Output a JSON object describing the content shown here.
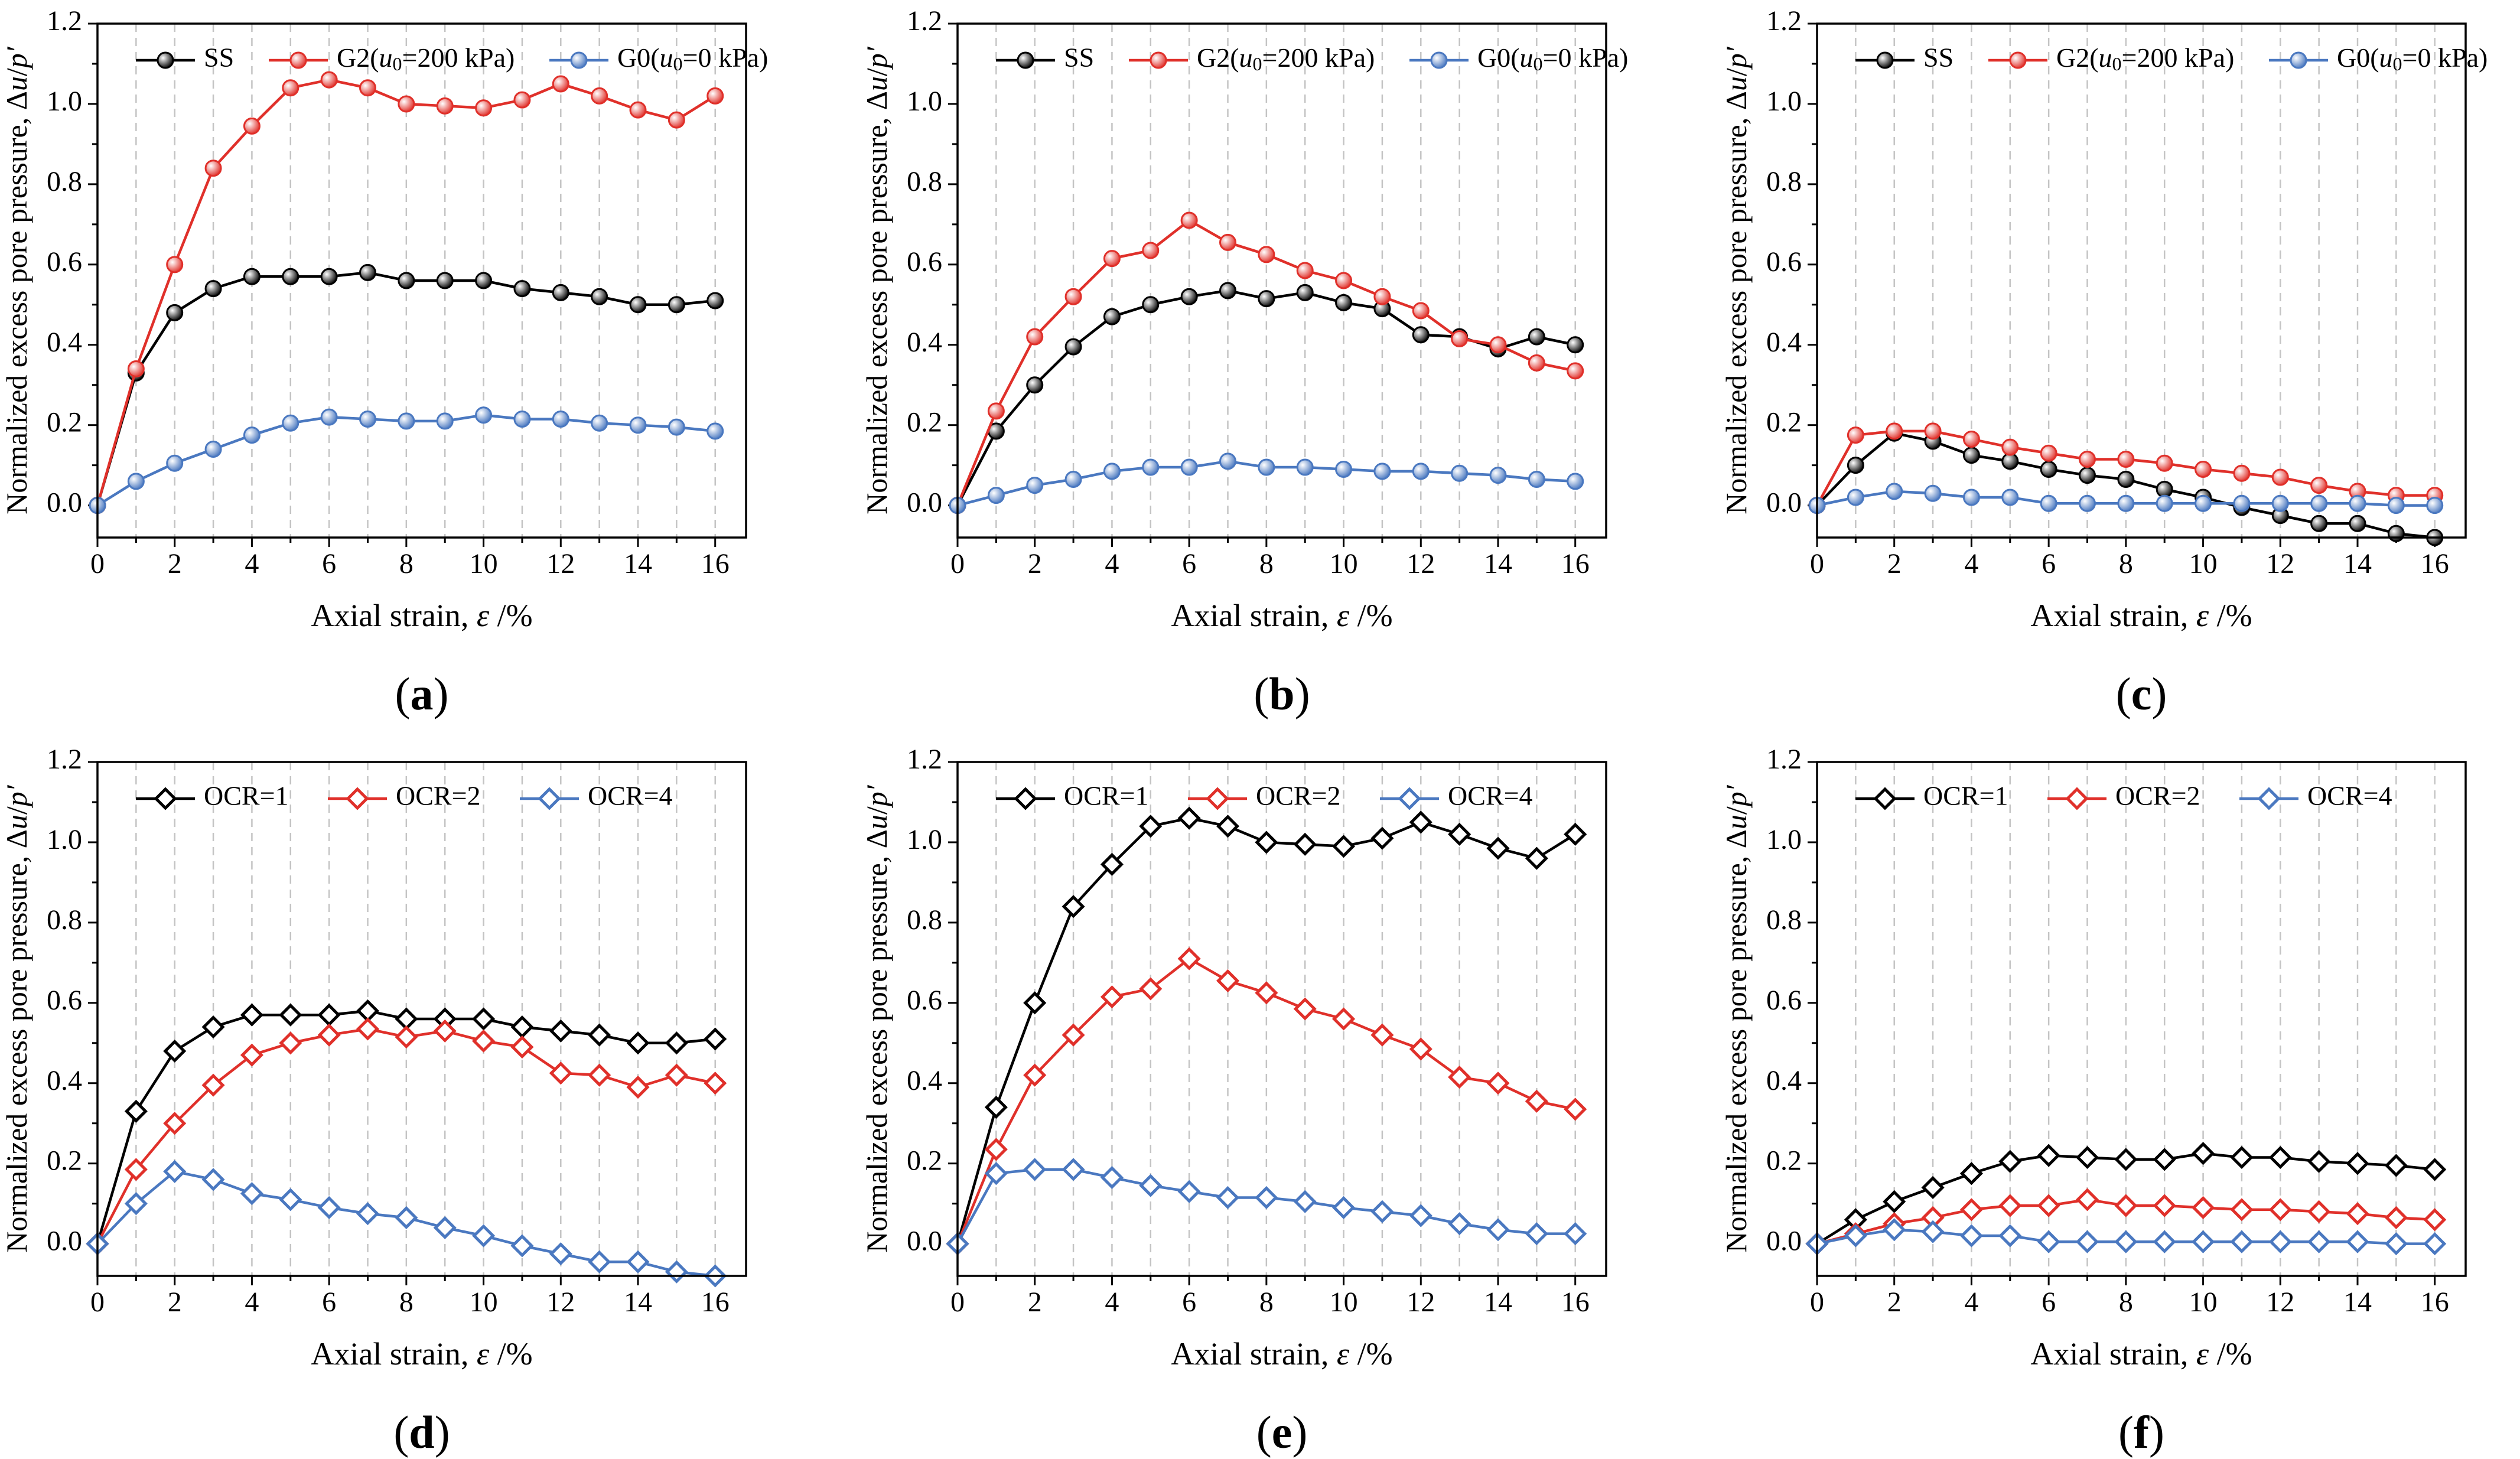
{
  "chart_data": [
    {
      "type": "line",
      "panel_label": "a",
      "xlabel": "Axial strain, ε /%",
      "ylabel": "Normalized excess pore pressure, Δu/p′",
      "xlim": [
        0,
        16.8
      ],
      "ylim": [
        -0.08,
        1.2
      ],
      "xticks": [
        0,
        2,
        4,
        6,
        8,
        10,
        12,
        14,
        16
      ],
      "yticks": [
        0.0,
        0.2,
        0.4,
        0.6,
        0.8,
        1.0,
        1.2
      ],
      "grid": "vertical dashed lines at every integer strain",
      "legend": "top",
      "marker": "circle",
      "x": [
        0,
        1,
        2,
        3,
        4,
        5,
        6,
        7,
        8,
        9,
        10,
        11,
        12,
        13,
        14,
        15,
        16
      ],
      "series": [
        {
          "name": "SS",
          "color": "#000000",
          "values": [
            0.0,
            0.33,
            0.48,
            0.54,
            0.57,
            0.57,
            0.57,
            0.58,
            0.56,
            0.56,
            0.56,
            0.54,
            0.53,
            0.52,
            0.5,
            0.5,
            0.51
          ]
        },
        {
          "name": "G2(u0=200 kPa)",
          "color": "#e0302a",
          "values": [
            0.0,
            0.34,
            0.6,
            0.84,
            0.945,
            1.04,
            1.06,
            1.04,
            1.0,
            0.995,
            0.99,
            1.01,
            1.05,
            1.02,
            0.985,
            0.96,
            1.02
          ]
        },
        {
          "name": "G0(u0=0 kPa)",
          "color": "#4a78c0",
          "values": [
            0.0,
            0.06,
            0.105,
            0.14,
            0.175,
            0.205,
            0.22,
            0.215,
            0.21,
            0.21,
            0.225,
            0.215,
            0.215,
            0.205,
            0.2,
            0.195,
            0.185
          ]
        }
      ]
    },
    {
      "type": "line",
      "panel_label": "b",
      "xlabel": "Axial strain, ε /%",
      "ylabel": "Normalized excess pore pressure, Δu/p′",
      "xlim": [
        0,
        16.8
      ],
      "ylim": [
        -0.08,
        1.2
      ],
      "xticks": [
        0,
        2,
        4,
        6,
        8,
        10,
        12,
        14,
        16
      ],
      "yticks": [
        0.0,
        0.2,
        0.4,
        0.6,
        0.8,
        1.0,
        1.2
      ],
      "grid": "vertical dashed lines at every integer strain",
      "legend": "top",
      "marker": "circle",
      "x": [
        0,
        1,
        2,
        3,
        4,
        5,
        6,
        7,
        8,
        9,
        10,
        11,
        12,
        13,
        14,
        15,
        16
      ],
      "series": [
        {
          "name": "SS",
          "color": "#000000",
          "values": [
            0.0,
            0.185,
            0.3,
            0.395,
            0.47,
            0.5,
            0.52,
            0.535,
            0.515,
            0.53,
            0.505,
            0.49,
            0.425,
            0.42,
            0.39,
            0.42,
            0.4
          ]
        },
        {
          "name": "G2(u0=200 kPa)",
          "color": "#e0302a",
          "values": [
            0.0,
            0.235,
            0.42,
            0.52,
            0.615,
            0.635,
            0.71,
            0.655,
            0.625,
            0.585,
            0.56,
            0.52,
            0.485,
            0.415,
            0.4,
            0.355,
            0.335
          ]
        },
        {
          "name": "G0(u0=0 kPa)",
          "color": "#4a78c0",
          "values": [
            0.0,
            0.025,
            0.05,
            0.065,
            0.085,
            0.095,
            0.095,
            0.11,
            0.095,
            0.095,
            0.09,
            0.085,
            0.085,
            0.08,
            0.075,
            0.065,
            0.06
          ]
        }
      ]
    },
    {
      "type": "line",
      "panel_label": "c",
      "xlabel": "Axial strain, ε /%",
      "ylabel": "Normalized excess pore pressure, Δu/p′",
      "xlim": [
        0,
        16.8
      ],
      "ylim": [
        -0.08,
        1.2
      ],
      "xticks": [
        0,
        2,
        4,
        6,
        8,
        10,
        12,
        14,
        16
      ],
      "yticks": [
        0.0,
        0.2,
        0.4,
        0.6,
        0.8,
        1.0,
        1.2
      ],
      "grid": "vertical dashed lines at every integer strain",
      "legend": "top",
      "marker": "circle",
      "x": [
        0,
        1,
        2,
        3,
        4,
        5,
        6,
        7,
        8,
        9,
        10,
        11,
        12,
        13,
        14,
        15,
        16
      ],
      "series": [
        {
          "name": "SS",
          "color": "#000000",
          "values": [
            0.0,
            0.1,
            0.18,
            0.16,
            0.125,
            0.11,
            0.09,
            0.075,
            0.065,
            0.04,
            0.02,
            -0.005,
            -0.025,
            -0.045,
            -0.045,
            -0.07,
            -0.08
          ]
        },
        {
          "name": "G2(u0=200 kPa)",
          "color": "#e0302a",
          "values": [
            0.0,
            0.175,
            0.185,
            0.185,
            0.165,
            0.145,
            0.13,
            0.115,
            0.115,
            0.105,
            0.09,
            0.08,
            0.07,
            0.05,
            0.035,
            0.025,
            0.025
          ]
        },
        {
          "name": "G0(u0=0 kPa)",
          "color": "#4a78c0",
          "values": [
            0.0,
            0.02,
            0.035,
            0.03,
            0.02,
            0.02,
            0.005,
            0.005,
            0.005,
            0.005,
            0.005,
            0.005,
            0.005,
            0.005,
            0.005,
            0.0,
            0.0
          ]
        }
      ]
    },
    {
      "type": "line",
      "panel_label": "d",
      "xlabel": "Axial strain, ε /%",
      "ylabel": "Normalized excess pore pressure, Δu/p′",
      "xlim": [
        0,
        16.8
      ],
      "ylim": [
        -0.08,
        1.2
      ],
      "xticks": [
        0,
        2,
        4,
        6,
        8,
        10,
        12,
        14,
        16
      ],
      "yticks": [
        0.0,
        0.2,
        0.4,
        0.6,
        0.8,
        1.0,
        1.2
      ],
      "grid": "vertical dashed lines at every integer strain",
      "legend": "top",
      "marker": "diamond",
      "x": [
        0,
        1,
        2,
        3,
        4,
        5,
        6,
        7,
        8,
        9,
        10,
        11,
        12,
        13,
        14,
        15,
        16
      ],
      "series": [
        {
          "name": "OCR=1",
          "color": "#000000",
          "values": [
            0.0,
            0.33,
            0.48,
            0.54,
            0.57,
            0.57,
            0.57,
            0.58,
            0.56,
            0.56,
            0.56,
            0.54,
            0.53,
            0.52,
            0.5,
            0.5,
            0.51
          ]
        },
        {
          "name": "OCR=2",
          "color": "#e0302a",
          "values": [
            0.0,
            0.185,
            0.3,
            0.395,
            0.47,
            0.5,
            0.52,
            0.535,
            0.515,
            0.53,
            0.505,
            0.49,
            0.425,
            0.42,
            0.39,
            0.42,
            0.4
          ]
        },
        {
          "name": "OCR=4",
          "color": "#4a78c0",
          "values": [
            0.0,
            0.1,
            0.18,
            0.16,
            0.125,
            0.11,
            0.09,
            0.075,
            0.065,
            0.04,
            0.02,
            -0.005,
            -0.025,
            -0.045,
            -0.045,
            -0.07,
            -0.08
          ]
        }
      ]
    },
    {
      "type": "line",
      "panel_label": "e",
      "xlabel": "Axial strain, ε /%",
      "ylabel": "Normalized excess pore pressure, Δu/p′",
      "xlim": [
        0,
        16.8
      ],
      "ylim": [
        -0.08,
        1.2
      ],
      "xticks": [
        0,
        2,
        4,
        6,
        8,
        10,
        12,
        14,
        16
      ],
      "yticks": [
        0.0,
        0.2,
        0.4,
        0.6,
        0.8,
        1.0,
        1.2
      ],
      "grid": "vertical dashed lines at every integer strain",
      "legend": "top",
      "marker": "diamond",
      "x": [
        0,
        1,
        2,
        3,
        4,
        5,
        6,
        7,
        8,
        9,
        10,
        11,
        12,
        13,
        14,
        15,
        16
      ],
      "series": [
        {
          "name": "OCR=1",
          "color": "#000000",
          "values": [
            0.0,
            0.34,
            0.6,
            0.84,
            0.945,
            1.04,
            1.06,
            1.04,
            1.0,
            0.995,
            0.99,
            1.01,
            1.05,
            1.02,
            0.985,
            0.96,
            1.02
          ]
        },
        {
          "name": "OCR=2",
          "color": "#e0302a",
          "values": [
            0.0,
            0.235,
            0.42,
            0.52,
            0.615,
            0.635,
            0.71,
            0.655,
            0.625,
            0.585,
            0.56,
            0.52,
            0.485,
            0.415,
            0.4,
            0.355,
            0.335
          ]
        },
        {
          "name": "OCR=4",
          "color": "#4a78c0",
          "values": [
            0.0,
            0.175,
            0.185,
            0.185,
            0.165,
            0.145,
            0.13,
            0.115,
            0.115,
            0.105,
            0.09,
            0.08,
            0.07,
            0.05,
            0.035,
            0.025,
            0.025
          ]
        }
      ]
    },
    {
      "type": "line",
      "panel_label": "f",
      "xlabel": "Axial strain, ε /%",
      "ylabel": "Normalized excess pore pressure, Δu/p′",
      "xlim": [
        0,
        16.8
      ],
      "ylim": [
        -0.08,
        1.2
      ],
      "xticks": [
        0,
        2,
        4,
        6,
        8,
        10,
        12,
        14,
        16
      ],
      "yticks": [
        0.0,
        0.2,
        0.4,
        0.6,
        0.8,
        1.0,
        1.2
      ],
      "grid": "vertical dashed lines at every integer strain",
      "legend": "top",
      "marker": "diamond",
      "x": [
        0,
        1,
        2,
        3,
        4,
        5,
        6,
        7,
        8,
        9,
        10,
        11,
        12,
        13,
        14,
        15,
        16
      ],
      "series": [
        {
          "name": "OCR=1",
          "color": "#000000",
          "values": [
            0.0,
            0.06,
            0.105,
            0.14,
            0.175,
            0.205,
            0.22,
            0.215,
            0.21,
            0.21,
            0.225,
            0.215,
            0.215,
            0.205,
            0.2,
            0.195,
            0.185
          ]
        },
        {
          "name": "OCR=2",
          "color": "#e0302a",
          "values": [
            0.0,
            0.025,
            0.05,
            0.065,
            0.085,
            0.095,
            0.095,
            0.11,
            0.095,
            0.095,
            0.09,
            0.085,
            0.085,
            0.08,
            0.075,
            0.065,
            0.06
          ]
        },
        {
          "name": "OCR=4",
          "color": "#4a78c0",
          "values": [
            0.0,
            0.02,
            0.035,
            0.03,
            0.02,
            0.02,
            0.005,
            0.005,
            0.005,
            0.005,
            0.005,
            0.005,
            0.005,
            0.005,
            0.005,
            0.0,
            0.0
          ]
        }
      ]
    }
  ]
}
